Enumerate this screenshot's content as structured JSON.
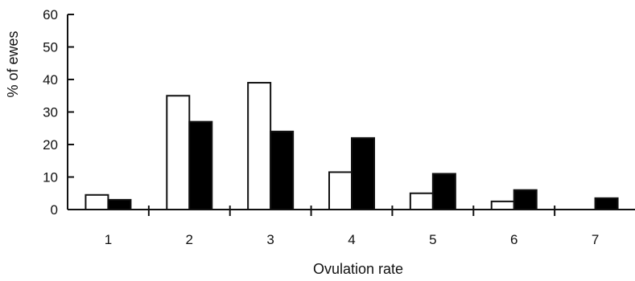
{
  "chart_data": {
    "type": "bar",
    "categories": [
      "1",
      "2",
      "3",
      "4",
      "5",
      "6",
      "7"
    ],
    "series": [
      {
        "fill": "#ffffff",
        "values": [
          4.5,
          35,
          39,
          11.5,
          5,
          2.5,
          0
        ]
      },
      {
        "fill": "#000000",
        "values": [
          3,
          27,
          24,
          22,
          11,
          6,
          3.5
        ]
      }
    ],
    "ylim": [
      0,
      60
    ],
    "yticks": [
      0,
      10,
      20,
      30,
      40,
      50,
      60
    ],
    "ylabel": "% of ewes",
    "xlabel": "Ovulation rate",
    "grid": false,
    "legend": "none"
  }
}
